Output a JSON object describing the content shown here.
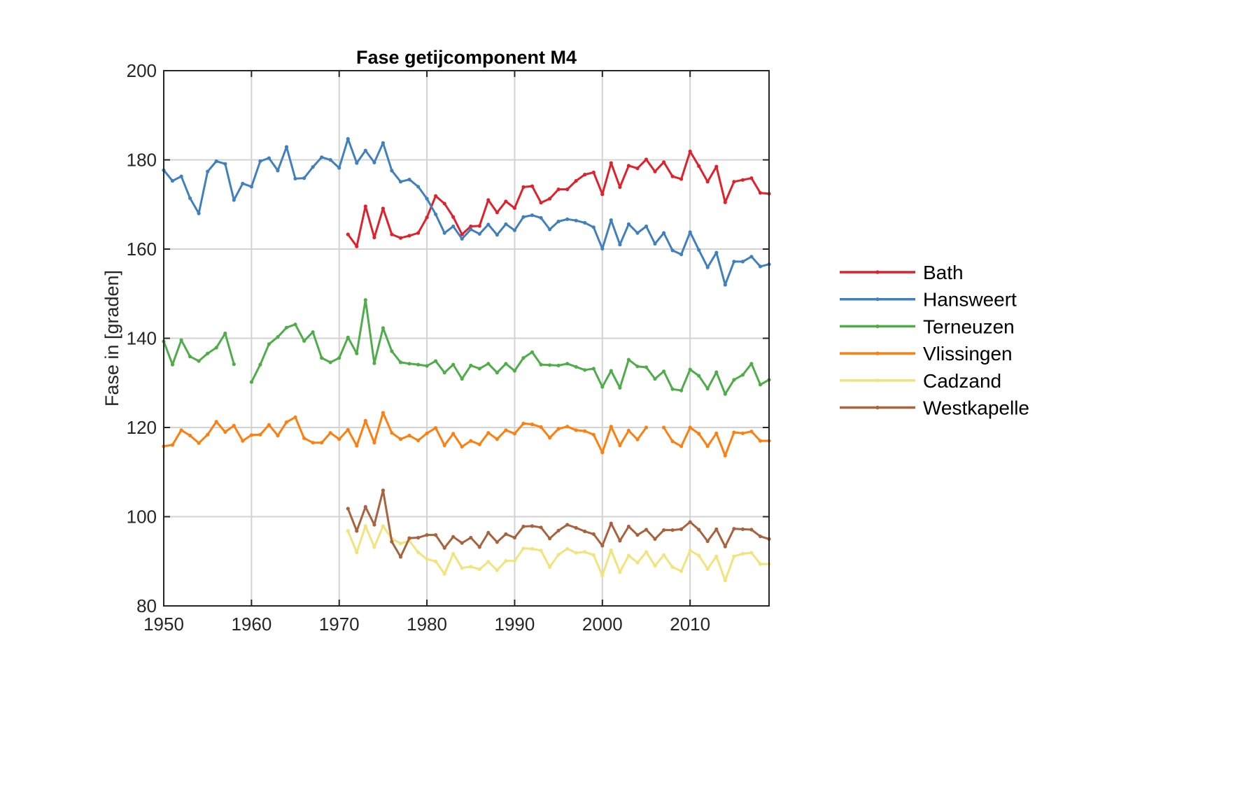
{
  "chart_data": {
    "type": "line",
    "title": "Fase getijcomponent M4",
    "xlabel": "",
    "ylabel": "Fase in [graden]",
    "xlim": [
      1950,
      2019
    ],
    "ylim": [
      80,
      200
    ],
    "xticks": [
      "1950",
      "1960",
      "1970",
      "1980",
      "1990",
      "2000",
      "2010"
    ],
    "yticks": [
      "80",
      "100",
      "120",
      "140",
      "160",
      "180",
      "200"
    ],
    "grid": true,
    "legend": "right",
    "series": [
      {
        "name": "Bath",
        "color": "#e0202a",
        "x": [
          1971,
          1972,
          1973,
          1974,
          1975,
          1976,
          1977,
          1978,
          1979,
          1980,
          1981,
          1982,
          1983,
          1984,
          1985,
          1986,
          1987,
          1988,
          1989,
          1990,
          1991,
          1992,
          1993,
          1994,
          1995,
          1996,
          1997,
          1998,
          1999,
          2000,
          2001,
          2002,
          2003,
          2004,
          2005,
          2006,
          2007,
          2008,
          2009,
          2010,
          2011,
          2012,
          2013,
          2014,
          2015,
          2016,
          2017,
          2018,
          2019
        ],
        "y": [
          163.3,
          160.6,
          169.6,
          162.6,
          169.1,
          163.3,
          162.5,
          163.0,
          163.6,
          167.1,
          171.9,
          170.2,
          167.2,
          163.3,
          165.1,
          165.2,
          171.0,
          168.2,
          170.7,
          169.2,
          173.9,
          174.1,
          170.4,
          171.3,
          173.4,
          173.4,
          175.3,
          176.7,
          177.2,
          172.3,
          179.3,
          173.9,
          178.7,
          178.1,
          180.1,
          177.4,
          179.5,
          176.3,
          175.7,
          181.9,
          178.6,
          175.1,
          178.5,
          170.5,
          175.1,
          175.5,
          175.9,
          172.6,
          172.4
        ]
      },
      {
        "name": "Hansweert",
        "color": "#3f80bd",
        "x": [
          1950,
          1951,
          1952,
          1953,
          1954,
          1955,
          1956,
          1957,
          1958,
          1959,
          1960,
          1961,
          1962,
          1963,
          1964,
          1965,
          1966,
          1967,
          1968,
          1969,
          1970,
          1971,
          1972,
          1973,
          1974,
          1975,
          1976,
          1977,
          1978,
          1979,
          1980,
          1981,
          1982,
          1983,
          1984,
          1985,
          1986,
          1987,
          1988,
          1989,
          1990,
          1991,
          1992,
          1993,
          1994,
          1995,
          1996,
          1997,
          1998,
          1999,
          2000,
          2001,
          2002,
          2003,
          2004,
          2005,
          2006,
          2007,
          2008,
          2009,
          2010,
          2011,
          2012,
          2013,
          2014,
          2015,
          2016,
          2017,
          2018,
          2019
        ],
        "y": [
          177.7,
          175.3,
          176.3,
          171.4,
          168.0,
          177.4,
          179.7,
          179.1,
          171.0,
          174.7,
          174.0,
          179.7,
          180.4,
          177.6,
          182.9,
          175.8,
          175.9,
          178.4,
          180.6,
          180.0,
          178.2,
          184.7,
          179.3,
          182.1,
          179.4,
          183.8,
          177.6,
          175.1,
          175.6,
          174.0,
          171.3,
          167.8,
          163.6,
          165.1,
          162.3,
          164.4,
          163.4,
          165.5,
          163.2,
          165.6,
          164.2,
          167.2,
          167.6,
          167.0,
          164.4,
          166.2,
          166.7,
          166.4,
          165.9,
          164.9,
          160.1,
          166.5,
          161.0,
          165.6,
          163.6,
          165.1,
          161.2,
          163.6,
          159.7,
          158.8,
          163.8,
          159.8,
          155.9,
          159.2,
          152.0,
          157.2,
          157.2,
          158.3,
          156.1,
          156.6
        ]
      },
      {
        "name": "Terneuzen",
        "color": "#4ead49",
        "x": [
          1950,
          1951,
          1952,
          1953,
          1954,
          1955,
          1956,
          1957,
          1958,
          null,
          1960,
          1961,
          1962,
          1963,
          1964,
          1965,
          1966,
          1967,
          1968,
          1969,
          1970,
          1971,
          1972,
          1973,
          1974,
          1975,
          1976,
          1977,
          1978,
          1979,
          1980,
          1981,
          1982,
          1983,
          1984,
          1985,
          1986,
          1987,
          1988,
          1989,
          1990,
          1991,
          1992,
          1993,
          1994,
          1995,
          1996,
          1997,
          1998,
          1999,
          2000,
          2001,
          2002,
          2003,
          2004,
          2005,
          2006,
          2007,
          2008,
          2009,
          2010,
          2011,
          2012,
          2013,
          2014,
          2015,
          2016,
          2017,
          2018,
          2019
        ],
        "y": [
          139.3,
          134.1,
          139.6,
          135.9,
          134.9,
          136.6,
          137.9,
          141.1,
          134.2,
          null,
          130.2,
          134.1,
          138.7,
          140.3,
          142.4,
          143.1,
          139.4,
          141.4,
          135.6,
          134.6,
          135.6,
          140.2,
          136.6,
          148.6,
          134.4,
          142.3,
          137.1,
          134.6,
          134.3,
          134.1,
          133.8,
          134.9,
          132.3,
          134.1,
          130.9,
          133.9,
          133.2,
          134.3,
          132.3,
          134.3,
          132.7,
          135.6,
          136.9,
          134.1,
          134.0,
          133.9,
          134.3,
          133.6,
          132.9,
          133.2,
          129.1,
          132.7,
          128.9,
          135.2,
          133.7,
          133.5,
          130.9,
          132.6,
          128.6,
          128.3,
          133.0,
          131.6,
          128.7,
          132.4,
          127.5,
          130.7,
          131.8,
          134.3,
          129.6,
          130.7
        ]
      },
      {
        "name": "Vlissingen",
        "color": "#ff7f0e",
        "x": [
          1950,
          1951,
          1952,
          1953,
          1954,
          1955,
          1956,
          1957,
          1958,
          1959,
          1960,
          1961,
          1962,
          1963,
          1964,
          1965,
          1966,
          1967,
          1968,
          1969,
          1970,
          1971,
          1972,
          1973,
          1974,
          1975,
          1976,
          1977,
          1978,
          1979,
          1980,
          1981,
          1982,
          1983,
          1984,
          1985,
          1986,
          1987,
          1988,
          1989,
          1990,
          1991,
          1992,
          1993,
          1994,
          1995,
          1996,
          1997,
          1998,
          1999,
          2000,
          2001,
          2002,
          2003,
          2004,
          2005,
          null,
          2007,
          2008,
          2009,
          2010,
          2011,
          2012,
          2013,
          2014,
          2015,
          2016,
          2017,
          2018,
          2019
        ],
        "y": [
          115.8,
          116.1,
          119.4,
          118.2,
          116.5,
          118.4,
          121.3,
          119.0,
          120.4,
          117.0,
          118.3,
          118.4,
          120.6,
          118.2,
          121.2,
          122.3,
          117.6,
          116.6,
          116.6,
          118.8,
          117.4,
          119.5,
          115.9,
          121.5,
          116.6,
          123.3,
          118.8,
          117.4,
          118.2,
          117.1,
          118.7,
          119.9,
          116.0,
          118.6,
          115.7,
          117.0,
          116.2,
          118.8,
          117.4,
          119.4,
          118.6,
          120.9,
          120.7,
          120.1,
          117.7,
          119.7,
          120.2,
          119.4,
          119.2,
          118.4,
          114.4,
          120.2,
          116.0,
          119.3,
          117.3,
          120.0,
          null,
          120.0,
          116.9,
          115.8,
          120.0,
          118.6,
          115.8,
          118.7,
          113.7,
          118.9,
          118.7,
          119.1,
          117.0,
          117.0
        ]
      },
      {
        "name": "Cadzand",
        "color": "#f2e37d",
        "x": [
          1971,
          1972,
          1973,
          1974,
          1975,
          1976,
          1977,
          1978,
          1979,
          1980,
          1981,
          1982,
          1983,
          1984,
          1985,
          1986,
          1987,
          1988,
          1989,
          1990,
          1991,
          1992,
          1993,
          1994,
          1995,
          1996,
          1997,
          1998,
          1999,
          2000,
          2001,
          2002,
          2003,
          2004,
          2005,
          2006,
          2007,
          2008,
          2009,
          2010,
          2011,
          2012,
          2013,
          2014,
          2015,
          2016,
          2017,
          2018,
          2019
        ],
        "y": [
          96.8,
          92.0,
          97.9,
          93.2,
          97.9,
          95.1,
          94.0,
          94.6,
          92.0,
          90.5,
          90.0,
          87.2,
          91.7,
          88.5,
          88.8,
          88.2,
          89.9,
          88.0,
          90.1,
          90.1,
          92.9,
          92.8,
          92.4,
          88.7,
          91.5,
          92.8,
          91.9,
          92.1,
          91.4,
          86.8,
          92.5,
          87.6,
          91.3,
          89.7,
          92.1,
          89.0,
          91.4,
          88.7,
          87.8,
          92.4,
          91.3,
          88.3,
          91.1,
          85.7,
          91.1,
          91.7,
          91.9,
          89.4,
          89.4
        ]
      },
      {
        "name": "Westkapelle",
        "color": "#a8623c",
        "x": [
          1971,
          1972,
          1973,
          1974,
          1975,
          1976,
          1977,
          1978,
          1979,
          1980,
          1981,
          1982,
          1983,
          1984,
          1985,
          1986,
          1987,
          1988,
          1989,
          1990,
          1991,
          1992,
          1993,
          1994,
          1995,
          1996,
          1997,
          1998,
          1999,
          2000,
          2001,
          2002,
          2003,
          2004,
          2005,
          2006,
          2007,
          2008,
          2009,
          2010,
          2011,
          2012,
          2013,
          2014,
          2015,
          2016,
          2017,
          2018,
          2019
        ],
        "y": [
          101.8,
          96.8,
          102.2,
          98.2,
          105.9,
          94.4,
          91.0,
          95.2,
          95.3,
          95.9,
          95.9,
          93.0,
          95.5,
          94.1,
          95.3,
          93.2,
          96.4,
          94.3,
          96.1,
          95.3,
          97.8,
          97.9,
          97.6,
          95.1,
          96.9,
          98.2,
          97.5,
          96.7,
          96.1,
          93.5,
          98.5,
          94.6,
          97.8,
          95.9,
          97.1,
          95.0,
          97.0,
          97.0,
          97.2,
          98.8,
          97.1,
          94.5,
          97.2,
          93.3,
          97.3,
          97.2,
          97.1,
          95.6,
          95.0
        ]
      }
    ]
  }
}
